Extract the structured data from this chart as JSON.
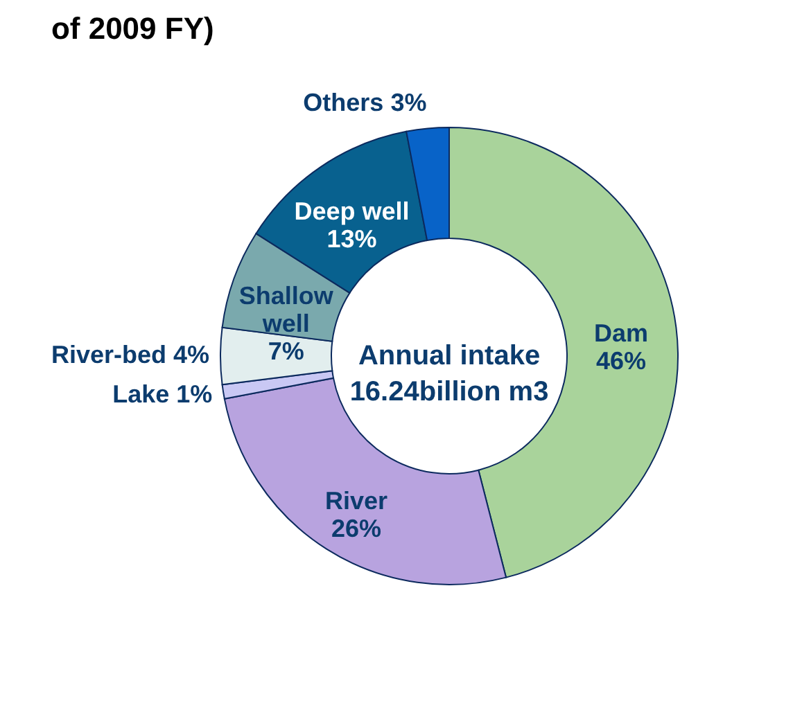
{
  "chart_data": {
    "type": "donut",
    "title": "of 2009 FY)",
    "categories": [
      "Dam",
      "River",
      "Lake",
      "River-bed",
      "Shallow well",
      "Deep well",
      "Others"
    ],
    "values": [
      46,
      26,
      1,
      4,
      7,
      13,
      3
    ],
    "value_labels": [
      "46%",
      "26%",
      "1%",
      "4%",
      "7%",
      "13%",
      "3%"
    ],
    "colors": [
      "#a9d39b",
      "#b8a3df",
      "#c9c8f4",
      "#e2eeee",
      "#7aa9ad",
      "#08618f",
      "#0863c8"
    ],
    "annotations": [
      "Annual intake\n16.24billion m3"
    ],
    "legend": false
  }
}
